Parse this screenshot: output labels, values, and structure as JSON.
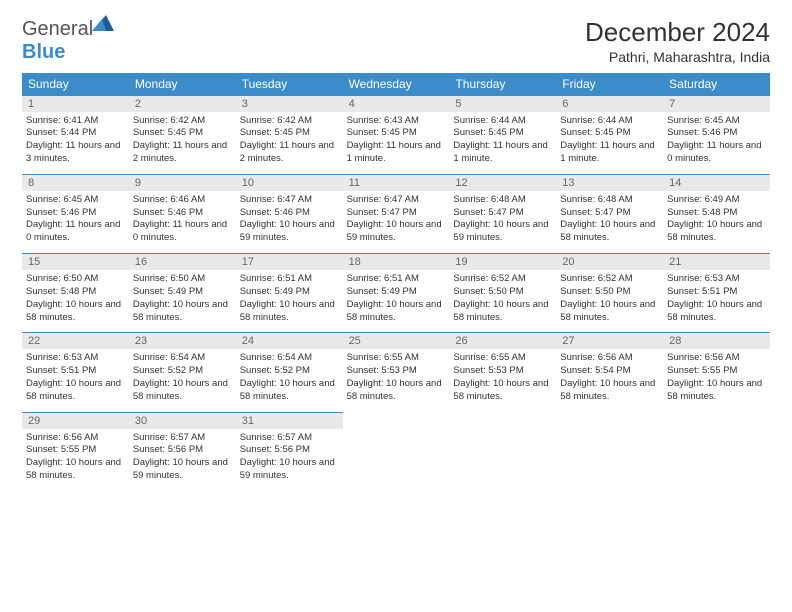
{
  "logo": {
    "gray": "General",
    "blue": "Blue"
  },
  "title": "December 2024",
  "location": "Pathri, Maharashtra, India",
  "colors": {
    "header_bg": "#3b8cc9",
    "header_fg": "#ffffff",
    "daynum_bg": "#e9e9e9",
    "daynum_fg": "#666666",
    "border": "#3b8cc9",
    "page_bg": "#ffffff",
    "text": "#333333"
  },
  "day_headers": [
    "Sunday",
    "Monday",
    "Tuesday",
    "Wednesday",
    "Thursday",
    "Friday",
    "Saturday"
  ],
  "days": [
    {
      "n": "1",
      "sr": "6:41 AM",
      "ss": "5:44 PM",
      "dl": "11 hours and 3 minutes."
    },
    {
      "n": "2",
      "sr": "6:42 AM",
      "ss": "5:45 PM",
      "dl": "11 hours and 2 minutes."
    },
    {
      "n": "3",
      "sr": "6:42 AM",
      "ss": "5:45 PM",
      "dl": "11 hours and 2 minutes."
    },
    {
      "n": "4",
      "sr": "6:43 AM",
      "ss": "5:45 PM",
      "dl": "11 hours and 1 minute."
    },
    {
      "n": "5",
      "sr": "6:44 AM",
      "ss": "5:45 PM",
      "dl": "11 hours and 1 minute."
    },
    {
      "n": "6",
      "sr": "6:44 AM",
      "ss": "5:45 PM",
      "dl": "11 hours and 1 minute."
    },
    {
      "n": "7",
      "sr": "6:45 AM",
      "ss": "5:46 PM",
      "dl": "11 hours and 0 minutes."
    },
    {
      "n": "8",
      "sr": "6:45 AM",
      "ss": "5:46 PM",
      "dl": "11 hours and 0 minutes."
    },
    {
      "n": "9",
      "sr": "6:46 AM",
      "ss": "5:46 PM",
      "dl": "11 hours and 0 minutes."
    },
    {
      "n": "10",
      "sr": "6:47 AM",
      "ss": "5:46 PM",
      "dl": "10 hours and 59 minutes."
    },
    {
      "n": "11",
      "sr": "6:47 AM",
      "ss": "5:47 PM",
      "dl": "10 hours and 59 minutes."
    },
    {
      "n": "12",
      "sr": "6:48 AM",
      "ss": "5:47 PM",
      "dl": "10 hours and 59 minutes."
    },
    {
      "n": "13",
      "sr": "6:48 AM",
      "ss": "5:47 PM",
      "dl": "10 hours and 58 minutes."
    },
    {
      "n": "14",
      "sr": "6:49 AM",
      "ss": "5:48 PM",
      "dl": "10 hours and 58 minutes."
    },
    {
      "n": "15",
      "sr": "6:50 AM",
      "ss": "5:48 PM",
      "dl": "10 hours and 58 minutes."
    },
    {
      "n": "16",
      "sr": "6:50 AM",
      "ss": "5:49 PM",
      "dl": "10 hours and 58 minutes."
    },
    {
      "n": "17",
      "sr": "6:51 AM",
      "ss": "5:49 PM",
      "dl": "10 hours and 58 minutes."
    },
    {
      "n": "18",
      "sr": "6:51 AM",
      "ss": "5:49 PM",
      "dl": "10 hours and 58 minutes."
    },
    {
      "n": "19",
      "sr": "6:52 AM",
      "ss": "5:50 PM",
      "dl": "10 hours and 58 minutes."
    },
    {
      "n": "20",
      "sr": "6:52 AM",
      "ss": "5:50 PM",
      "dl": "10 hours and 58 minutes."
    },
    {
      "n": "21",
      "sr": "6:53 AM",
      "ss": "5:51 PM",
      "dl": "10 hours and 58 minutes."
    },
    {
      "n": "22",
      "sr": "6:53 AM",
      "ss": "5:51 PM",
      "dl": "10 hours and 58 minutes."
    },
    {
      "n": "23",
      "sr": "6:54 AM",
      "ss": "5:52 PM",
      "dl": "10 hours and 58 minutes."
    },
    {
      "n": "24",
      "sr": "6:54 AM",
      "ss": "5:52 PM",
      "dl": "10 hours and 58 minutes."
    },
    {
      "n": "25",
      "sr": "6:55 AM",
      "ss": "5:53 PM",
      "dl": "10 hours and 58 minutes."
    },
    {
      "n": "26",
      "sr": "6:55 AM",
      "ss": "5:53 PM",
      "dl": "10 hours and 58 minutes."
    },
    {
      "n": "27",
      "sr": "6:56 AM",
      "ss": "5:54 PM",
      "dl": "10 hours and 58 minutes."
    },
    {
      "n": "28",
      "sr": "6:56 AM",
      "ss": "5:55 PM",
      "dl": "10 hours and 58 minutes."
    },
    {
      "n": "29",
      "sr": "6:56 AM",
      "ss": "5:55 PM",
      "dl": "10 hours and 58 minutes."
    },
    {
      "n": "30",
      "sr": "6:57 AM",
      "ss": "5:56 PM",
      "dl": "10 hours and 59 minutes."
    },
    {
      "n": "31",
      "sr": "6:57 AM",
      "ss": "5:56 PM",
      "dl": "10 hours and 59 minutes."
    }
  ],
  "labels": {
    "sunrise": "Sunrise: ",
    "sunset": "Sunset: ",
    "daylight": "Daylight: "
  }
}
